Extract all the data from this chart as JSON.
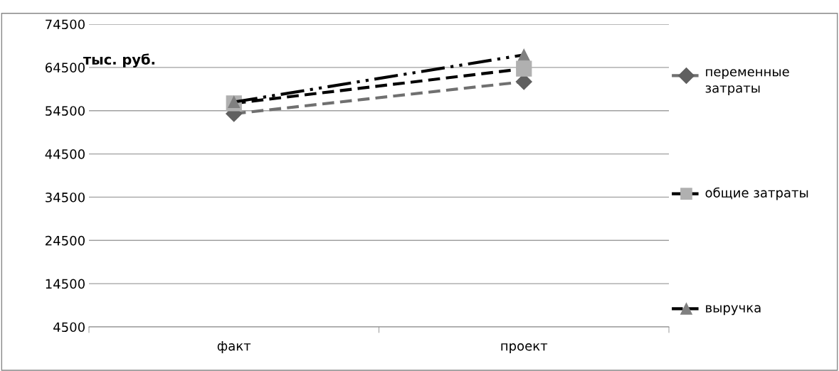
{
  "chart_data": {
    "type": "line",
    "ylabel": "тыс. руб.",
    "categories": [
      "факт",
      "проект"
    ],
    "series": [
      {
        "name": "переменные затраты",
        "color": "#707070",
        "marker": "diamond",
        "line_style": "dashed",
        "values": [
          53800,
          61200
        ]
      },
      {
        "name": "общие затраты",
        "color": "#000000",
        "marker": "square",
        "line_style": "dashed",
        "values": [
          56200,
          64200
        ]
      },
      {
        "name": "выручка",
        "color": "#000000",
        "marker": "triangle",
        "line_style": "dashdotdot",
        "values": [
          56500,
          67400
        ]
      }
    ],
    "ylim": [
      4500,
      74500
    ],
    "yticks": [
      4500,
      14500,
      24500,
      34500,
      44500,
      54500,
      64500,
      74500
    ],
    "grid": "y",
    "legend": "right"
  }
}
